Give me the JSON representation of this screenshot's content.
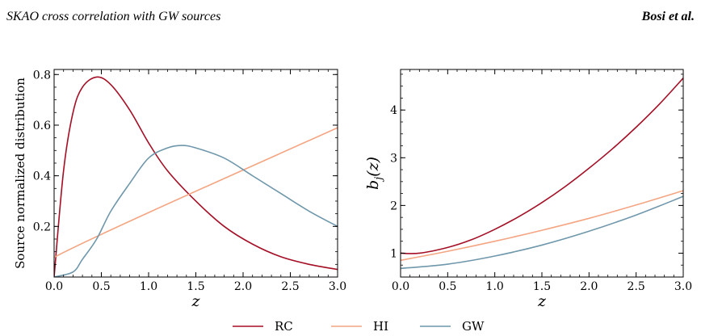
{
  "header": {
    "left": "SKAO cross correlation with GW sources",
    "right": "Bosi et al."
  },
  "legend": [
    {
      "name": "RC",
      "color": "#a50f26"
    },
    {
      "name": "HI",
      "color": "#f4a582"
    },
    {
      "name": "GW",
      "color": "#6f97ab"
    }
  ],
  "chart_data": [
    {
      "type": "line",
      "xlabel": "z",
      "ylabel": "Source normalized distribution",
      "xlim": [
        0.0,
        3.0
      ],
      "ylim": [
        0.0,
        0.82
      ],
      "xticks": [
        "0.0",
        "0.5",
        "1.0",
        "1.5",
        "2.0",
        "2.5",
        "3.0"
      ],
      "yticks": [
        "0.2",
        "0.4",
        "0.6",
        "0.8"
      ],
      "grid": false,
      "series": [
        {
          "name": "RC",
          "color": "#a50f26",
          "x": [
            0.0,
            0.1,
            0.2,
            0.3,
            0.45,
            0.6,
            0.8,
            1.0,
            1.2,
            1.5,
            1.8,
            2.1,
            2.4,
            2.7,
            3.0
          ],
          "y": [
            0.0,
            0.42,
            0.65,
            0.75,
            0.79,
            0.76,
            0.66,
            0.53,
            0.42,
            0.3,
            0.2,
            0.13,
            0.08,
            0.05,
            0.03
          ]
        },
        {
          "name": "HI",
          "color": "#f4a582",
          "x": [
            0.0,
            0.01,
            3.0
          ],
          "y": [
            0.0,
            0.08,
            0.59
          ]
        },
        {
          "name": "GW",
          "color": "#6f97ab",
          "x": [
            0.0,
            0.2,
            0.3,
            0.45,
            0.6,
            0.8,
            1.0,
            1.2,
            1.35,
            1.5,
            1.8,
            2.1,
            2.4,
            2.7,
            3.0
          ],
          "y": [
            0.0,
            0.02,
            0.07,
            0.15,
            0.26,
            0.37,
            0.47,
            0.51,
            0.52,
            0.51,
            0.47,
            0.4,
            0.33,
            0.26,
            0.2
          ]
        }
      ]
    },
    {
      "type": "line",
      "xlabel": "z",
      "ylabel": "b_j(z)",
      "xlim": [
        0.0,
        3.0
      ],
      "ylim": [
        0.5,
        4.85
      ],
      "xticks": [
        "0.0",
        "0.5",
        "1.0",
        "1.5",
        "2.0",
        "2.5",
        "3.0"
      ],
      "yticks": [
        "1",
        "2",
        "3",
        "4"
      ],
      "grid": false,
      "series": [
        {
          "name": "RC",
          "color": "#a50f26",
          "x": [
            0.0,
            0.2,
            0.5,
            0.75,
            1.0,
            1.25,
            1.5,
            1.75,
            2.0,
            2.25,
            2.5,
            2.75,
            3.0
          ],
          "y": [
            1.0,
            1.0,
            1.12,
            1.28,
            1.5,
            1.76,
            2.06,
            2.4,
            2.78,
            3.19,
            3.64,
            4.13,
            4.67
          ]
        },
        {
          "name": "HI",
          "color": "#f4a582",
          "x": [
            0.0,
            0.5,
            1.0,
            1.5,
            2.0,
            2.5,
            3.0
          ],
          "y": [
            0.85,
            1.04,
            1.25,
            1.48,
            1.73,
            2.01,
            2.31
          ]
        },
        {
          "name": "GW",
          "color": "#6f97ab",
          "x": [
            0.0,
            0.5,
            1.0,
            1.5,
            2.0,
            2.5,
            3.0
          ],
          "y": [
            0.68,
            0.77,
            0.94,
            1.17,
            1.46,
            1.8,
            2.19
          ]
        }
      ]
    }
  ]
}
